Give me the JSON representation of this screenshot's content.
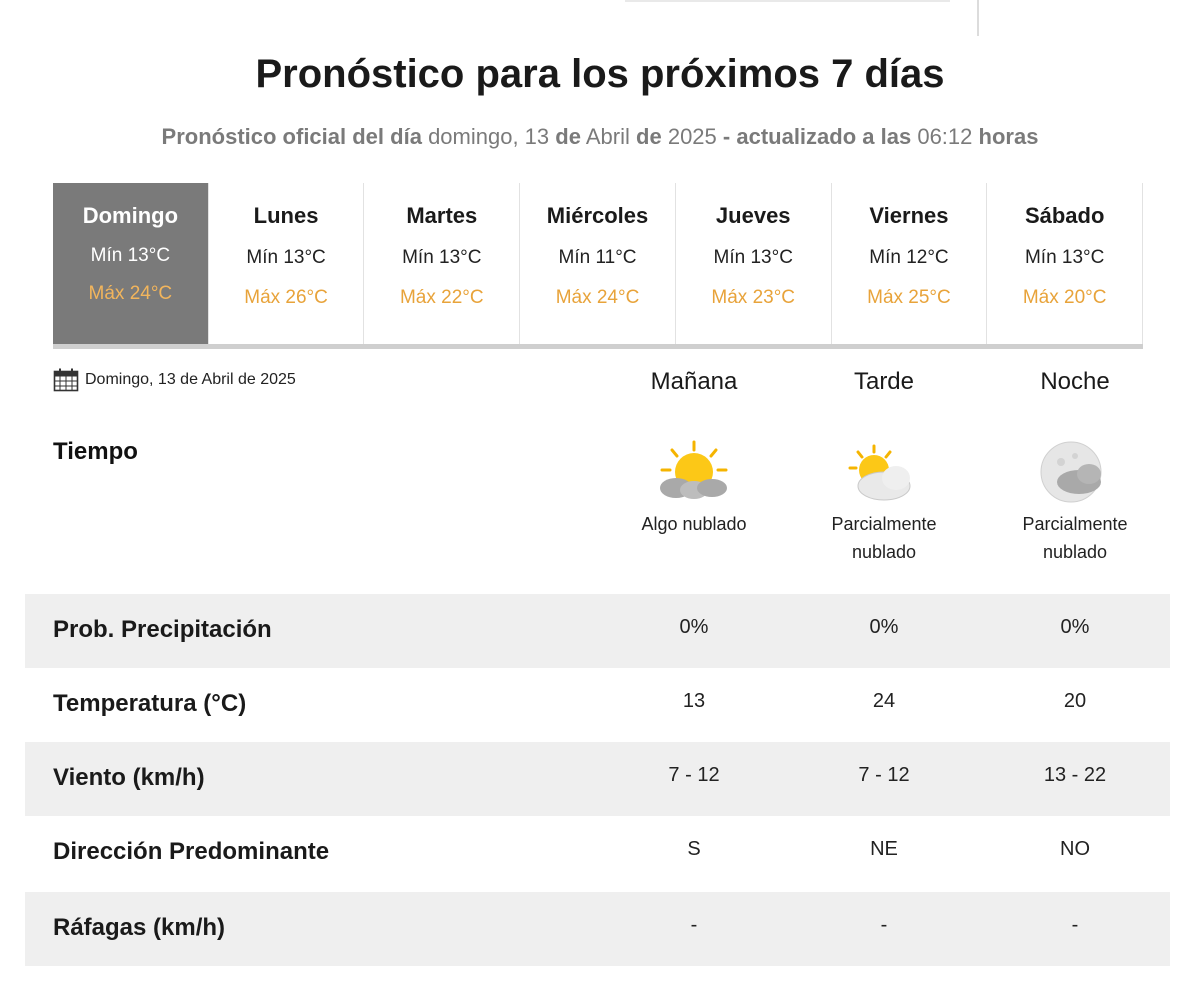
{
  "header": {
    "title": "Pronóstico para los próximos 7 días",
    "subtitle_prefix": "Pronóstico oficial del día",
    "subtitle_weekday": "domingo, 13",
    "subtitle_de1": "de",
    "subtitle_month": "Abril",
    "subtitle_de2": "de",
    "subtitle_year": "2025",
    "subtitle_updated": "- actualizado a las",
    "subtitle_time": "06:12",
    "subtitle_hours": "horas"
  },
  "days": [
    {
      "name": "Domingo",
      "min": "Mín 13°C",
      "max": "Máx 24°C",
      "active": true
    },
    {
      "name": "Lunes",
      "min": "Mín 13°C",
      "max": "Máx 26°C"
    },
    {
      "name": "Martes",
      "min": "Mín 13°C",
      "max": "Máx 22°C"
    },
    {
      "name": "Miércoles",
      "min": "Mín 11°C",
      "max": "Máx 24°C"
    },
    {
      "name": "Jueves",
      "min": "Mín 13°C",
      "max": "Máx 23°C"
    },
    {
      "name": "Viernes",
      "min": "Mín 12°C",
      "max": "Máx 25°C"
    },
    {
      "name": "Sábado",
      "min": "Mín 13°C",
      "max": "Máx 20°C"
    }
  ],
  "detail": {
    "date_label": "Domingo, 13 de Abril de 2025",
    "calendar_icon": "calendar-icon",
    "periods": [
      "Mañana",
      "Tarde",
      "Noche"
    ],
    "tiempo_label": "Tiempo",
    "weather": [
      {
        "icon": "sun-cloud-icon",
        "desc": [
          "Algo nublado"
        ]
      },
      {
        "icon": "sun-behind-cloud-icon",
        "desc": [
          "Parcialmente",
          "nublado"
        ]
      },
      {
        "icon": "moon-cloud-icon",
        "desc": [
          "Parcialmente",
          "nublado"
        ]
      }
    ],
    "rows": [
      {
        "label": "Prob. Precipitación",
        "values": [
          "0%",
          "0%",
          "0%"
        ]
      },
      {
        "label": "Temperatura (°C)",
        "values": [
          "13",
          "24",
          "20"
        ]
      },
      {
        "label": "Viento (km/h)",
        "values": [
          "7 - 12",
          "7 - 12",
          "13 - 22"
        ]
      },
      {
        "label": "Dirección Predominante",
        "values": [
          "S",
          "NE",
          "NO"
        ]
      },
      {
        "label": "Ráfagas (km/h)",
        "values": [
          "-",
          "-",
          "-"
        ]
      }
    ]
  },
  "colors": {
    "active_day_bg": "#7a7a7a",
    "max_temp": "#e8a33a",
    "row_grey": "#efefef"
  }
}
